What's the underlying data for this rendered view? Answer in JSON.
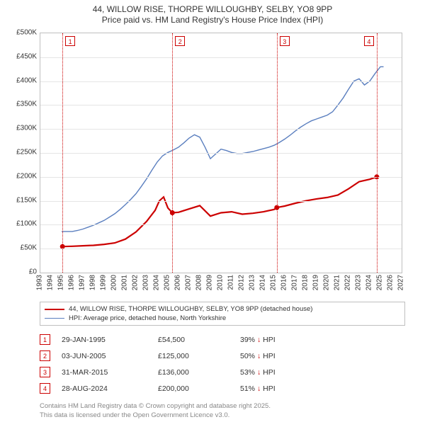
{
  "title_line1": "44, WILLOW RISE, THORPE WILLOUGHBY, SELBY, YO8 9PP",
  "title_line2": "Price paid vs. HM Land Registry's House Price Index (HPI)",
  "colors": {
    "series1": "#cc0000",
    "series2": "#5b7fbf",
    "grid": "#e5e5e5",
    "axis": "#bfbfbf",
    "text": "#333333",
    "muted": "#888888",
    "bg": "#ffffff"
  },
  "axes": {
    "xmin": 1993,
    "xmax": 2027,
    "ymin": 0,
    "ymax": 500000,
    "yticks": [
      0,
      50000,
      100000,
      150000,
      200000,
      250000,
      300000,
      350000,
      400000,
      450000,
      500000
    ],
    "ytick_labels": [
      "£0",
      "£50K",
      "£100K",
      "£150K",
      "£200K",
      "£250K",
      "£300K",
      "£350K",
      "£400K",
      "£450K",
      "£500K"
    ],
    "xticks": [
      1993,
      1994,
      1995,
      1996,
      1997,
      1998,
      1999,
      2000,
      2001,
      2002,
      2003,
      2004,
      2005,
      2006,
      2007,
      2008,
      2009,
      2010,
      2011,
      2012,
      2013,
      2014,
      2015,
      2016,
      2017,
      2018,
      2019,
      2020,
      2021,
      2022,
      2023,
      2024,
      2025,
      2026,
      2027
    ]
  },
  "hpi": [
    [
      1995.0,
      86000
    ],
    [
      1995.5,
      86000
    ],
    [
      1996.0,
      86000
    ],
    [
      1996.5,
      88000
    ],
    [
      1997.0,
      91000
    ],
    [
      1997.5,
      95000
    ],
    [
      1998.0,
      99000
    ],
    [
      1998.5,
      104000
    ],
    [
      1999.0,
      109000
    ],
    [
      1999.5,
      116000
    ],
    [
      2000.0,
      123000
    ],
    [
      2000.5,
      132000
    ],
    [
      2001.0,
      142000
    ],
    [
      2001.5,
      153000
    ],
    [
      2002.0,
      165000
    ],
    [
      2002.5,
      180000
    ],
    [
      2003.0,
      196000
    ],
    [
      2003.5,
      214000
    ],
    [
      2004.0,
      231000
    ],
    [
      2004.5,
      244000
    ],
    [
      2005.0,
      251000
    ],
    [
      2005.5,
      256000
    ],
    [
      2006.0,
      262000
    ],
    [
      2006.5,
      271000
    ],
    [
      2007.0,
      281000
    ],
    [
      2007.5,
      288000
    ],
    [
      2008.0,
      283000
    ],
    [
      2008.5,
      262000
    ],
    [
      2009.0,
      238000
    ],
    [
      2009.5,
      248000
    ],
    [
      2010.0,
      258000
    ],
    [
      2010.5,
      255000
    ],
    [
      2011.0,
      251000
    ],
    [
      2011.5,
      249000
    ],
    [
      2012.0,
      249000
    ],
    [
      2012.5,
      251000
    ],
    [
      2013.0,
      253000
    ],
    [
      2013.5,
      256000
    ],
    [
      2014.0,
      259000
    ],
    [
      2014.5,
      262000
    ],
    [
      2015.0,
      266000
    ],
    [
      2015.5,
      272000
    ],
    [
      2016.0,
      279000
    ],
    [
      2016.5,
      287000
    ],
    [
      2017.0,
      296000
    ],
    [
      2017.5,
      304000
    ],
    [
      2018.0,
      311000
    ],
    [
      2018.5,
      317000
    ],
    [
      2019.0,
      321000
    ],
    [
      2019.5,
      325000
    ],
    [
      2020.0,
      329000
    ],
    [
      2020.5,
      336000
    ],
    [
      2021.0,
      350000
    ],
    [
      2021.5,
      365000
    ],
    [
      2022.0,
      383000
    ],
    [
      2022.5,
      400000
    ],
    [
      2023.0,
      405000
    ],
    [
      2023.5,
      392000
    ],
    [
      2024.0,
      400000
    ],
    [
      2024.5,
      416000
    ],
    [
      2025.0,
      430000
    ],
    [
      2025.3,
      430000
    ]
  ],
  "price_paid": [
    [
      1995.08,
      54500
    ],
    [
      1996.0,
      55000
    ],
    [
      1997.0,
      56000
    ],
    [
      1998.0,
      57000
    ],
    [
      1999.0,
      59000
    ],
    [
      2000.0,
      62000
    ],
    [
      2001.0,
      70000
    ],
    [
      2002.0,
      85000
    ],
    [
      2003.0,
      107000
    ],
    [
      2003.8,
      130000
    ],
    [
      2004.2,
      150000
    ],
    [
      2004.6,
      158000
    ],
    [
      2005.0,
      135000
    ],
    [
      2005.42,
      125000
    ],
    [
      2006.0,
      126000
    ],
    [
      2007.0,
      133000
    ],
    [
      2008.0,
      140000
    ],
    [
      2009.0,
      118000
    ],
    [
      2010.0,
      125000
    ],
    [
      2011.0,
      127000
    ],
    [
      2012.0,
      122000
    ],
    [
      2013.0,
      124000
    ],
    [
      2014.0,
      127000
    ],
    [
      2015.0,
      132000
    ],
    [
      2015.25,
      136000
    ],
    [
      2016.0,
      139000
    ],
    [
      2017.0,
      145000
    ],
    [
      2018.0,
      150000
    ],
    [
      2019.0,
      154000
    ],
    [
      2020.0,
      157000
    ],
    [
      2021.0,
      162000
    ],
    [
      2022.0,
      175000
    ],
    [
      2023.0,
      190000
    ],
    [
      2024.0,
      195000
    ],
    [
      2024.66,
      200000
    ]
  ],
  "markers": [
    {
      "n": "1",
      "year": 1995.08
    },
    {
      "n": "2",
      "year": 2005.42
    },
    {
      "n": "3",
      "year": 2015.25
    },
    {
      "n": "4",
      "year": 2024.66
    }
  ],
  "sale_points": [
    {
      "year": 1995.08,
      "price": 54500
    },
    {
      "year": 2005.42,
      "price": 125000
    },
    {
      "year": 2015.25,
      "price": 136000
    },
    {
      "year": 2024.66,
      "price": 200000
    }
  ],
  "legend": {
    "s1": "44, WILLOW RISE, THORPE WILLOUGHBY, SELBY, YO8 9PP (detached house)",
    "s2": "HPI: Average price, detached house, North Yorkshire"
  },
  "table": [
    {
      "n": "1",
      "date": "29-JAN-1995",
      "price": "£54,500",
      "delta": "39% ↓ HPI"
    },
    {
      "n": "2",
      "date": "03-JUN-2005",
      "price": "£125,000",
      "delta": "50% ↓ HPI"
    },
    {
      "n": "3",
      "date": "31-MAR-2015",
      "price": "£136,000",
      "delta": "53% ↓ HPI"
    },
    {
      "n": "4",
      "date": "28-AUG-2024",
      "price": "£200,000",
      "delta": "51% ↓ HPI"
    }
  ],
  "attribution": {
    "l1": "Contains HM Land Registry data © Crown copyright and database right 2025.",
    "l2": "This data is licensed under the Open Government Licence v3.0."
  }
}
